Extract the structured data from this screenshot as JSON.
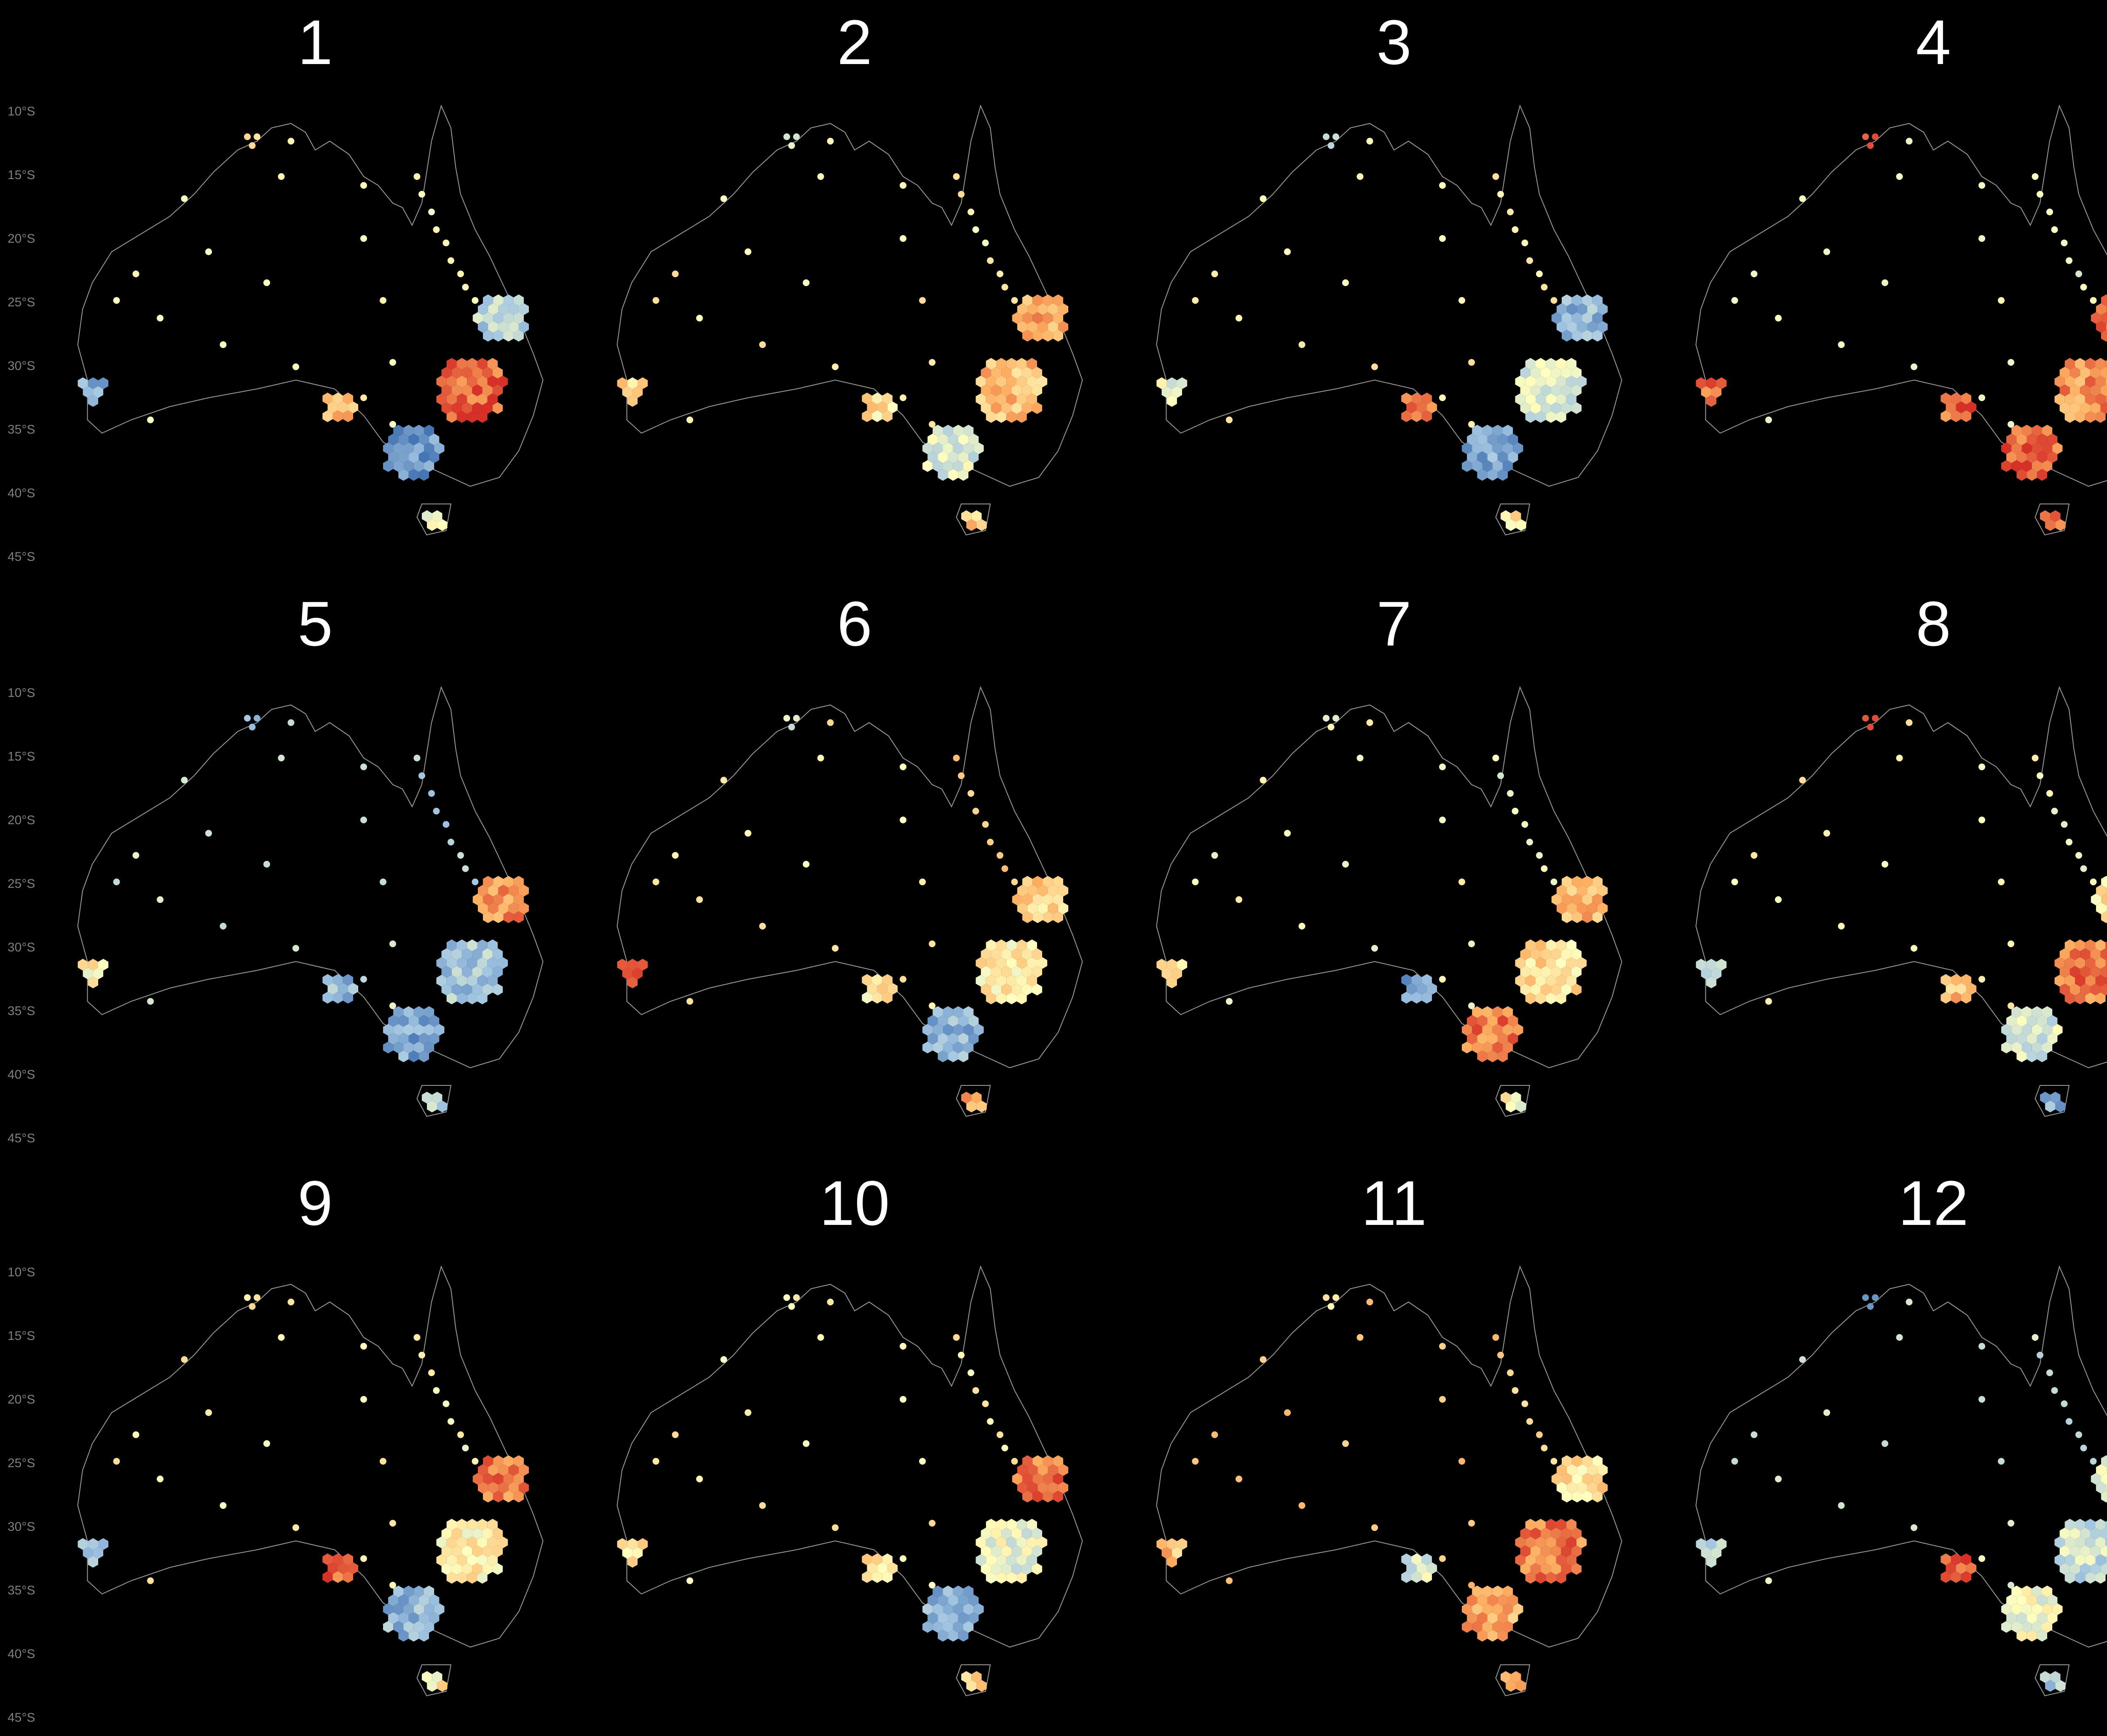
{
  "chart_data": {
    "type": "heatmap",
    "description_of_marks": "hexbin map of Australia, one panel per cluster",
    "y_axis_ticks": [
      "10°S",
      "15°S",
      "20°S",
      "25°S",
      "30°S",
      "35°S",
      "40°S",
      "45°S"
    ],
    "color_scale": {
      "low": "#4575b4",
      "mid_low": "#a6c8e3",
      "mid": "#ffffbf",
      "mid_high": "#fdae61",
      "high": "#d73027"
    },
    "panels": [
      {
        "label": "1",
        "regions": {
          "north": 0.55,
          "queensland": 0.5,
          "se_qld": 0.3,
          "nsw": 0.9,
          "sa": 0.7,
          "victoria": 0.1,
          "tasmania": 0.5,
          "perth": 0.15,
          "interior": 0.55
        }
      },
      {
        "label": "2",
        "regions": {
          "north": 0.4,
          "queensland": 0.55,
          "se_qld": 0.75,
          "nsw": 0.7,
          "sa": 0.6,
          "victoria": 0.4,
          "tasmania": 0.65,
          "perth": 0.62,
          "interior": 0.55
        }
      },
      {
        "label": "3",
        "regions": {
          "north": 0.3,
          "queensland": 0.55,
          "se_qld": 0.2,
          "nsw": 0.4,
          "sa": 0.9,
          "victoria": 0.15,
          "tasmania": 0.55,
          "perth": 0.45,
          "interior": 0.55
        }
      },
      {
        "label": "4",
        "regions": {
          "north": 0.95,
          "queensland": 0.45,
          "se_qld": 0.85,
          "nsw": 0.8,
          "sa": 0.9,
          "victoria": 0.9,
          "tasmania": 0.85,
          "perth": 0.85,
          "interior": 0.5
        }
      },
      {
        "label": "5",
        "regions": {
          "north": 0.25,
          "queensland": 0.3,
          "se_qld": 0.8,
          "nsw": 0.25,
          "sa": 0.2,
          "victoria": 0.15,
          "tasmania": 0.3,
          "perth": 0.55,
          "interior": 0.4
        }
      },
      {
        "label": "6",
        "regions": {
          "north": 0.4,
          "queensland": 0.65,
          "se_qld": 0.65,
          "nsw": 0.55,
          "sa": 0.55,
          "victoria": 0.2,
          "tasmania": 0.75,
          "perth": 0.85,
          "interior": 0.55
        }
      },
      {
        "label": "7",
        "regions": {
          "north": 0.45,
          "queensland": 0.45,
          "se_qld": 0.7,
          "nsw": 0.6,
          "sa": 0.15,
          "victoria": 0.85,
          "tasmania": 0.5,
          "perth": 0.58,
          "interior": 0.5
        }
      },
      {
        "label": "8",
        "regions": {
          "north": 0.9,
          "queensland": 0.5,
          "se_qld": 0.6,
          "nsw": 0.85,
          "sa": 0.7,
          "victoria": 0.4,
          "tasmania": 0.2,
          "perth": 0.3,
          "interior": 0.55
        }
      },
      {
        "label": "9",
        "regions": {
          "north": 0.6,
          "queensland": 0.5,
          "se_qld": 0.85,
          "nsw": 0.55,
          "sa": 0.9,
          "victoria": 0.2,
          "tasmania": 0.55,
          "perth": 0.25,
          "interior": 0.55
        }
      },
      {
        "label": "10",
        "regions": {
          "north": 0.5,
          "queensland": 0.55,
          "se_qld": 0.85,
          "nsw": 0.45,
          "sa": 0.6,
          "victoria": 0.2,
          "tasmania": 0.6,
          "perth": 0.6,
          "interior": 0.55
        }
      },
      {
        "label": "11",
        "regions": {
          "north": 0.55,
          "queensland": 0.65,
          "se_qld": 0.6,
          "nsw": 0.85,
          "sa": 0.4,
          "victoria": 0.75,
          "tasmania": 0.7,
          "perth": 0.7,
          "interior": 0.7
        }
      },
      {
        "label": "12",
        "regions": {
          "north": 0.15,
          "queensland": 0.35,
          "se_qld": 0.4,
          "nsw": 0.35,
          "sa": 0.9,
          "victoria": 0.45,
          "tasmania": 0.3,
          "perth": 0.3,
          "interior": 0.4
        }
      }
    ]
  }
}
